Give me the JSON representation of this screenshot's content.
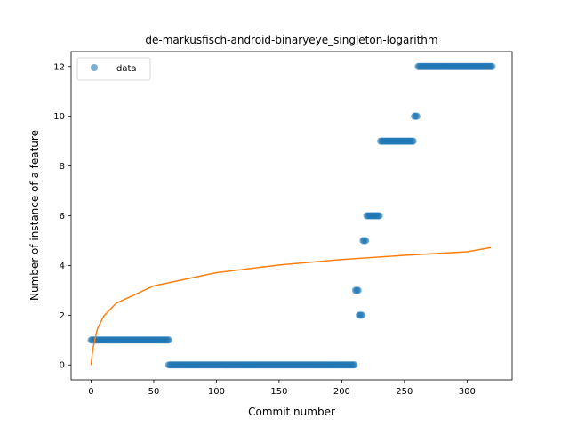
{
  "chart_data": {
    "type": "scatter",
    "title": "de-markusfisch-android-binaryeye_singleton-logarithm",
    "xlabel": "Commit number",
    "ylabel": "Number of instance of a feature",
    "xlim": [
      -15.95,
      335.95
    ],
    "ylim": [
      -0.6,
      12.6
    ],
    "xticks": [
      0,
      50,
      100,
      150,
      200,
      250,
      300
    ],
    "yticks": [
      0,
      2,
      4,
      6,
      8,
      10,
      12
    ],
    "grid": false,
    "legend": {
      "placement": "top-left",
      "entries": [
        "data"
      ]
    },
    "colors": {
      "data": "#1f77b4",
      "fit": "#ff7f0e"
    },
    "series": [
      {
        "name": "data",
        "kind": "scatter",
        "segments": [
          {
            "x_start": 0,
            "x_end": 62,
            "y": 1
          },
          {
            "x_start": 62,
            "x_end": 210,
            "y": 0
          },
          {
            "x_start": 211,
            "x_end": 213,
            "y": 3
          },
          {
            "x_start": 214,
            "x_end": 216,
            "y": 2
          },
          {
            "x_start": 217,
            "x_end": 219,
            "y": 5
          },
          {
            "x_start": 220,
            "x_end": 230,
            "y": 6
          },
          {
            "x_start": 231,
            "x_end": 257,
            "y": 9
          },
          {
            "x_start": 258,
            "x_end": 260,
            "y": 10
          },
          {
            "x_start": 261,
            "x_end": 320,
            "y": 12
          }
        ]
      },
      {
        "kind": "line",
        "model": "logarithmic",
        "x": [
          0,
          1,
          2,
          5,
          10,
          20,
          50,
          100,
          150,
          200,
          250,
          300,
          319
        ],
        "y": [
          0.0,
          0.49,
          0.78,
          1.44,
          1.96,
          2.48,
          3.18,
          3.71,
          4.02,
          4.24,
          4.41,
          4.55,
          4.72
        ]
      }
    ]
  }
}
